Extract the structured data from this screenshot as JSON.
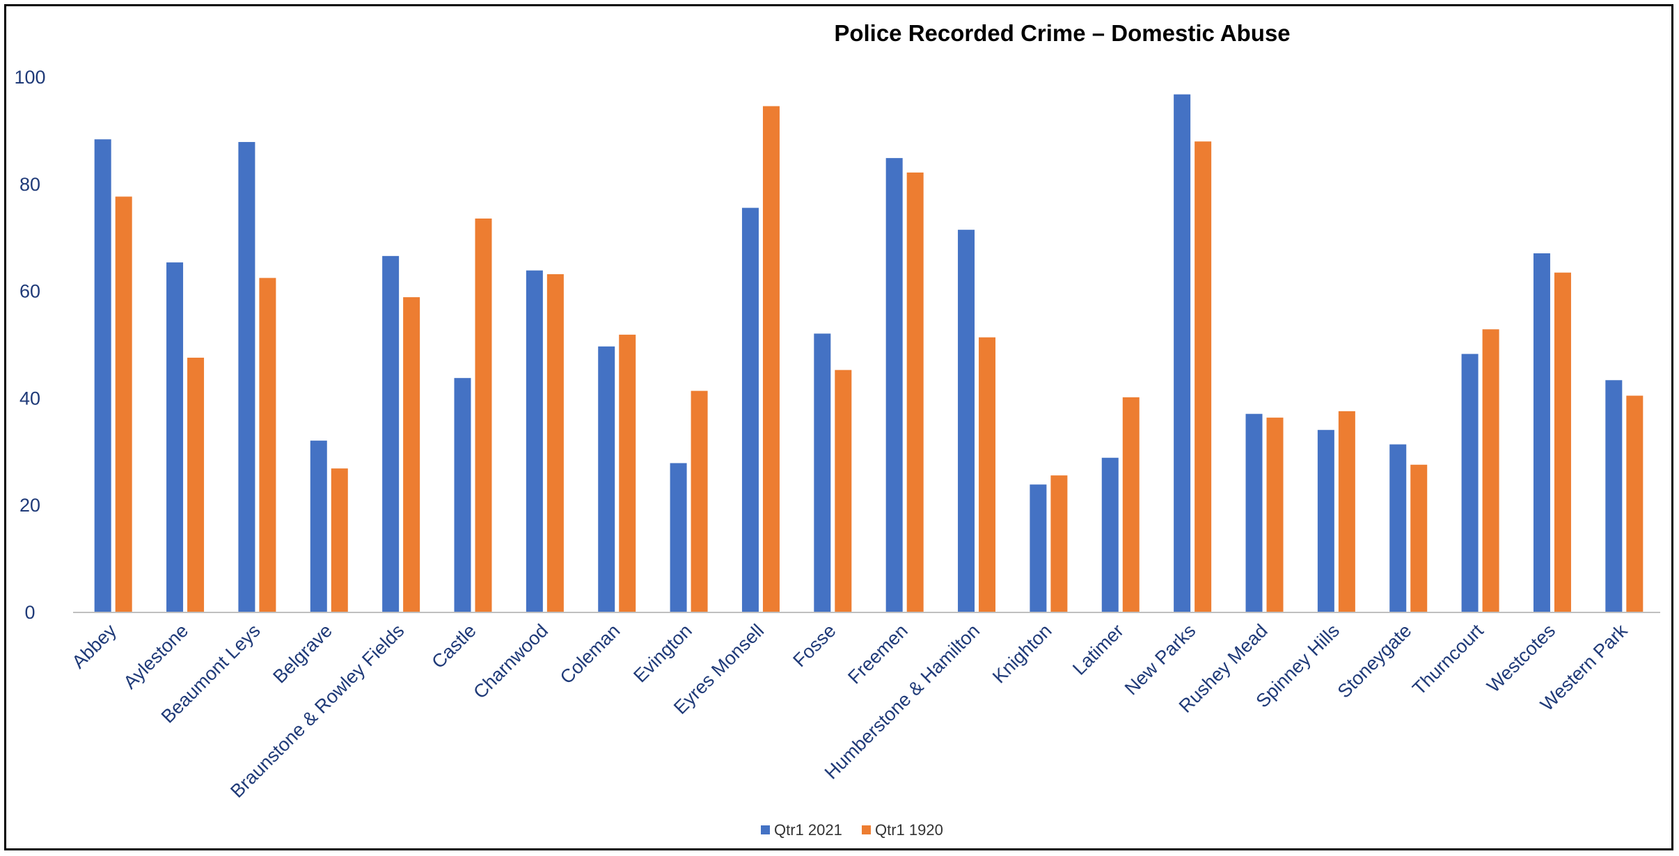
{
  "chart_data": {
    "type": "bar",
    "title": "Police Recorded Crime – Domestic Abuse",
    "xlabel": "",
    "ylabel": "",
    "ylim": [
      0,
      100
    ],
    "yticks": [
      0,
      20,
      40,
      60,
      80,
      100
    ],
    "grid": false,
    "legend_position": "bottom",
    "categories": [
      "Abbey",
      "Aylestone",
      "Beaumont Leys",
      "Belgrave",
      "Braunstone & Rowley Fields",
      "Castle",
      "Charnwood",
      "Coleman",
      "Evington",
      "Eyres Monsell",
      "Fosse",
      "Freemen",
      "Humberstone & Hamilton",
      "Knighton",
      "Latimer",
      "New Parks",
      "Rushey Mead",
      "Spinney Hills",
      "Stoneygate",
      "Thurncourt",
      "Westcotes",
      "Western Park"
    ],
    "series": [
      {
        "name": "Qtr1 2021",
        "color": "#4472C4",
        "values": [
          88.4,
          65.4,
          87.9,
          32.1,
          66.6,
          43.8,
          63.9,
          49.7,
          27.9,
          75.6,
          52.1,
          84.9,
          71.5,
          23.9,
          28.9,
          96.8,
          37.1,
          34.1,
          31.4,
          48.3,
          67.1,
          43.4
        ]
      },
      {
        "name": "Qtr1 1920",
        "color": "#ED7D31",
        "values": [
          77.7,
          47.6,
          62.5,
          26.9,
          58.9,
          73.6,
          63.2,
          51.9,
          41.4,
          94.6,
          45.3,
          82.2,
          51.4,
          25.6,
          40.2,
          88.0,
          36.4,
          37.6,
          27.6,
          52.9,
          63.5,
          40.5
        ]
      }
    ]
  }
}
